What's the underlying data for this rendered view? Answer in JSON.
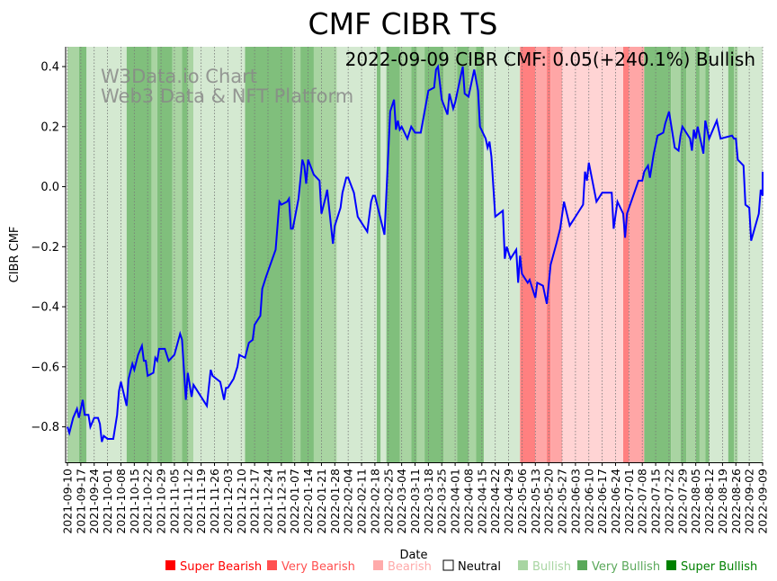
{
  "chart_data": {
    "type": "line",
    "title": "CMF CIBR TS",
    "xlabel": "Date",
    "ylabel": "CIBR CMF",
    "annotation": "2022-09-09 CIBR CMF: 0.05(+240.1%) Bullish",
    "watermark": [
      "W3Data.io Chart",
      "Web3 Data & NFT Platform"
    ],
    "x_unit": "days since 2021-09-10",
    "xlim": [
      0,
      364
    ],
    "ylim": [
      -0.918,
      0.466
    ],
    "yticks": [
      0.4,
      0.2,
      0.0,
      -0.2,
      -0.4,
      -0.6,
      -0.8
    ],
    "ytick_labels": [
      "0.4",
      "0.2",
      "0.0",
      "−0.2",
      "−0.4",
      "−0.6",
      "−0.8"
    ],
    "grid": "vertical dotted at x ticks",
    "xtick_labels": [
      "2021-09-10",
      "2021-09-17",
      "2021-09-24",
      "2021-10-01",
      "2021-10-08",
      "2021-10-15",
      "2021-10-22",
      "2021-10-29",
      "2021-11-05",
      "2021-11-12",
      "2021-11-19",
      "2021-11-26",
      "2021-12-03",
      "2021-12-10",
      "2021-12-17",
      "2021-12-24",
      "2021-12-31",
      "2022-01-07",
      "2022-01-14",
      "2022-01-21",
      "2022-01-28",
      "2022-02-04",
      "2022-02-11",
      "2022-02-18",
      "2022-02-25",
      "2022-03-04",
      "2022-03-11",
      "2022-03-18",
      "2022-03-25",
      "2022-04-01",
      "2022-04-08",
      "2022-04-15",
      "2022-04-22",
      "2022-04-29",
      "2022-05-06",
      "2022-05-13",
      "2022-05-20",
      "2022-05-27",
      "2022-06-03",
      "2022-06-10",
      "2022-06-17",
      "2022-06-24",
      "2022-07-01",
      "2022-07-08",
      "2022-07-15",
      "2022-07-22",
      "2022-07-29",
      "2022-08-05",
      "2022-08-12",
      "2022-08-19",
      "2022-08-26",
      "2022-09-02",
      "2022-09-09"
    ],
    "series": [
      {
        "name": "CIBR CMF",
        "color": "#0000ff",
        "points": [
          [
            0,
            -0.8
          ],
          [
            1,
            -0.82
          ],
          [
            3,
            -0.77
          ],
          [
            5,
            -0.74
          ],
          [
            6,
            -0.77
          ],
          [
            8,
            -0.71
          ],
          [
            9,
            -0.76
          ],
          [
            11,
            -0.76
          ],
          [
            12,
            -0.8
          ],
          [
            14,
            -0.77
          ],
          [
            16,
            -0.77
          ],
          [
            17,
            -0.79
          ],
          [
            18,
            -0.85
          ],
          [
            19,
            -0.83
          ],
          [
            21,
            -0.84
          ],
          [
            24,
            -0.84
          ],
          [
            26,
            -0.76
          ],
          [
            27,
            -0.68
          ],
          [
            28,
            -0.65
          ],
          [
            31,
            -0.73
          ],
          [
            32,
            -0.64
          ],
          [
            34,
            -0.59
          ],
          [
            35,
            -0.61
          ],
          [
            37,
            -0.56
          ],
          [
            39,
            -0.53
          ],
          [
            40,
            -0.58
          ],
          [
            41,
            -0.58
          ],
          [
            42,
            -0.63
          ],
          [
            45,
            -0.62
          ],
          [
            46,
            -0.57
          ],
          [
            47,
            -0.58
          ],
          [
            48,
            -0.54
          ],
          [
            51,
            -0.54
          ],
          [
            53,
            -0.58
          ],
          [
            56,
            -0.56
          ],
          [
            59,
            -0.49
          ],
          [
            60,
            -0.51
          ],
          [
            62,
            -0.71
          ],
          [
            63,
            -0.62
          ],
          [
            65,
            -0.7
          ],
          [
            66,
            -0.66
          ],
          [
            67,
            -0.67
          ],
          [
            73,
            -0.73
          ],
          [
            75,
            -0.61
          ],
          [
            76,
            -0.63
          ],
          [
            80,
            -0.65
          ],
          [
            82,
            -0.71
          ],
          [
            83,
            -0.67
          ],
          [
            84,
            -0.67
          ],
          [
            87,
            -0.64
          ],
          [
            89,
            -0.6
          ],
          [
            90,
            -0.56
          ],
          [
            93,
            -0.57
          ],
          [
            95,
            -0.52
          ],
          [
            97,
            -0.51
          ],
          [
            98,
            -0.46
          ],
          [
            101,
            -0.43
          ],
          [
            102,
            -0.34
          ],
          [
            104,
            -0.3
          ],
          [
            109,
            -0.21
          ],
          [
            111,
            -0.05
          ],
          [
            112,
            -0.06
          ],
          [
            115,
            -0.05
          ],
          [
            116,
            -0.04
          ],
          [
            117,
            -0.14
          ],
          [
            118,
            -0.14
          ],
          [
            121,
            -0.04
          ],
          [
            123,
            0.09
          ],
          [
            124,
            0.07
          ],
          [
            125,
            0.01
          ],
          [
            126,
            0.09
          ],
          [
            129,
            0.04
          ],
          [
            132,
            0.02
          ],
          [
            133,
            -0.09
          ],
          [
            135,
            -0.04
          ],
          [
            136,
            -0.01
          ],
          [
            139,
            -0.19
          ],
          [
            140,
            -0.13
          ],
          [
            143,
            -0.07
          ],
          [
            144,
            -0.02
          ],
          [
            146,
            0.03
          ],
          [
            147,
            0.03
          ],
          [
            150,
            -0.02
          ],
          [
            152,
            -0.1
          ],
          [
            153,
            -0.11
          ],
          [
            157,
            -0.15
          ],
          [
            159,
            -0.05
          ],
          [
            160,
            -0.03
          ],
          [
            161,
            -0.03
          ],
          [
            166,
            -0.16
          ],
          [
            169,
            0.25
          ],
          [
            171,
            0.29
          ],
          [
            172,
            0.19
          ],
          [
            173,
            0.22
          ],
          [
            174,
            0.19
          ],
          [
            175,
            0.2
          ],
          [
            178,
            0.16
          ],
          [
            180,
            0.2
          ],
          [
            182,
            0.18
          ],
          [
            185,
            0.18
          ],
          [
            187,
            0.25
          ],
          [
            189,
            0.32
          ],
          [
            192,
            0.33
          ],
          [
            193,
            0.39
          ],
          [
            194,
            0.4
          ],
          [
            196,
            0.29
          ],
          [
            199,
            0.24
          ],
          [
            200,
            0.31
          ],
          [
            202,
            0.26
          ],
          [
            203,
            0.28
          ],
          [
            207,
            0.4
          ],
          [
            208,
            0.31
          ],
          [
            210,
            0.3
          ],
          [
            213,
            0.39
          ],
          [
            215,
            0.32
          ],
          [
            216,
            0.2
          ],
          [
            219,
            0.16
          ],
          [
            220,
            0.13
          ],
          [
            221,
            0.15
          ],
          [
            222,
            0.1
          ],
          [
            224,
            -0.1
          ],
          [
            228,
            -0.08
          ],
          [
            229,
            -0.24
          ],
          [
            230,
            -0.2
          ],
          [
            232,
            -0.24
          ],
          [
            235,
            -0.21
          ],
          [
            236,
            -0.32
          ],
          [
            237,
            -0.23
          ],
          [
            238,
            -0.29
          ],
          [
            241,
            -0.32
          ],
          [
            242,
            -0.31
          ],
          [
            245,
            -0.37
          ],
          [
            246,
            -0.32
          ],
          [
            249,
            -0.33
          ],
          [
            251,
            -0.39
          ],
          [
            253,
            -0.26
          ],
          [
            256,
            -0.19
          ],
          [
            258,
            -0.14
          ],
          [
            260,
            -0.05
          ],
          [
            263,
            -0.13
          ],
          [
            265,
            -0.11
          ],
          [
            267,
            -0.09
          ],
          [
            270,
            -0.06
          ],
          [
            271,
            0.05
          ],
          [
            272,
            0.02
          ],
          [
            273,
            0.08
          ],
          [
            277,
            -0.05
          ],
          [
            279,
            -0.03
          ],
          [
            280,
            -0.02
          ],
          [
            285,
            -0.02
          ],
          [
            286,
            -0.14
          ],
          [
            288,
            -0.05
          ],
          [
            291,
            -0.09
          ],
          [
            292,
            -0.17
          ],
          [
            293,
            -0.09
          ],
          [
            299,
            0.02
          ],
          [
            301,
            0.02
          ],
          [
            302,
            0.05
          ],
          [
            304,
            0.07
          ],
          [
            305,
            0.03
          ],
          [
            307,
            0.11
          ],
          [
            309,
            0.17
          ],
          [
            312,
            0.18
          ],
          [
            313,
            0.21
          ],
          [
            315,
            0.25
          ],
          [
            318,
            0.13
          ],
          [
            320,
            0.12
          ],
          [
            321,
            0.17
          ],
          [
            322,
            0.2
          ],
          [
            326,
            0.16
          ],
          [
            327,
            0.12
          ],
          [
            328,
            0.19
          ],
          [
            329,
            0.16
          ],
          [
            330,
            0.2
          ],
          [
            333,
            0.11
          ],
          [
            334,
            0.22
          ],
          [
            336,
            0.16
          ],
          [
            340,
            0.22
          ],
          [
            342,
            0.16
          ],
          [
            348,
            0.17
          ],
          [
            349,
            0.16
          ],
          [
            350,
            0.16
          ],
          [
            351,
            0.09
          ],
          [
            354,
            0.07
          ],
          [
            355,
            -0.06
          ],
          [
            357,
            -0.07
          ],
          [
            358,
            -0.18
          ],
          [
            362,
            -0.09
          ],
          [
            363,
            -0.01
          ],
          [
            364,
            -0.03
          ],
          [
            365,
            0.05
          ]
        ]
      }
    ],
    "bands": [
      [
        0,
        6,
        "vb"
      ],
      [
        6,
        10,
        "sb"
      ],
      [
        10,
        31,
        "b"
      ],
      [
        31,
        44,
        "sb"
      ],
      [
        44,
        47,
        "vb"
      ],
      [
        47,
        55,
        "sb"
      ],
      [
        55,
        60,
        "vb"
      ],
      [
        60,
        63,
        "sb"
      ],
      [
        63,
        66,
        "vb"
      ],
      [
        66,
        93,
        "b"
      ],
      [
        93,
        118,
        "sb"
      ],
      [
        118,
        122,
        "vb"
      ],
      [
        122,
        129,
        "sb"
      ],
      [
        129,
        141,
        "vb"
      ],
      [
        141,
        162,
        "b"
      ],
      [
        162,
        164,
        "sb"
      ],
      [
        164,
        167,
        "b"
      ],
      [
        167,
        174,
        "sb"
      ],
      [
        174,
        180,
        "vb"
      ],
      [
        180,
        183,
        "sb"
      ],
      [
        183,
        187,
        "vb"
      ],
      [
        187,
        197,
        "sb"
      ],
      [
        197,
        204,
        "vb"
      ],
      [
        204,
        210,
        "sb"
      ],
      [
        210,
        214,
        "vb"
      ],
      [
        214,
        218,
        "sb"
      ],
      [
        218,
        237,
        "b"
      ],
      [
        237,
        245,
        "sbe"
      ],
      [
        245,
        251,
        "vbe"
      ],
      [
        251,
        253,
        "sbe"
      ],
      [
        253,
        259,
        "vbe"
      ],
      [
        259,
        291,
        "be"
      ],
      [
        291,
        294,
        "sbe"
      ],
      [
        294,
        302,
        "vbe"
      ],
      [
        302,
        316,
        "sb"
      ],
      [
        316,
        321,
        "vb"
      ],
      [
        321,
        324,
        "sb"
      ],
      [
        324,
        329,
        "vb"
      ],
      [
        329,
        331,
        "sb"
      ],
      [
        331,
        334,
        "vb"
      ],
      [
        334,
        336,
        "sb"
      ],
      [
        336,
        346,
        "b"
      ],
      [
        346,
        349,
        "sb"
      ],
      [
        349,
        351,
        "vb"
      ],
      [
        351,
        365,
        "b"
      ]
    ],
    "band_colors": {
      "sbe": "#ff8080",
      "vbe": "#ffa6a6",
      "be": "#ffd4d4",
      "b": "#d4e9d1",
      "vb": "#a9d4a2",
      "sb": "#80bf7c"
    },
    "legend": [
      {
        "label": "Super Bearish",
        "color": "#ff0000"
      },
      {
        "label": "Very Bearish",
        "color": "#ff5050"
      },
      {
        "label": "Bearish",
        "color": "#ffaaaa"
      },
      {
        "label": "Neutral",
        "color": "#ffffff",
        "text_color": "#000000"
      },
      {
        "label": "Bullish",
        "color": "#a8d5a2"
      },
      {
        "label": "Very Bullish",
        "color": "#5aa85a"
      },
      {
        "label": "Super Bullish",
        "color": "#008000"
      }
    ],
    "legend_position": "bottom"
  }
}
